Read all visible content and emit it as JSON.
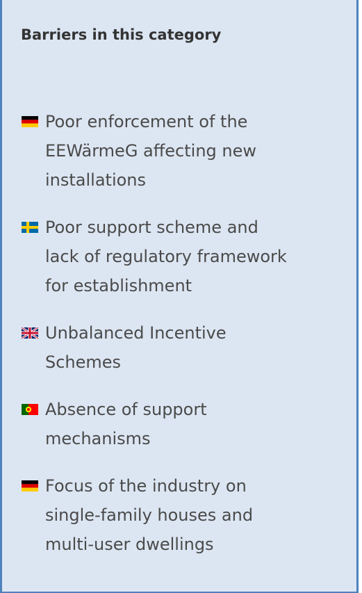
{
  "panel": {
    "title": "Barriers in this category",
    "items": [
      {
        "lines": [
          "Poor enforcement of the",
          "EEWärmeG affecting new",
          "installations"
        ]
      },
      {
        "lines": [
          "Poor support scheme and",
          "lack of regulatory framework",
          "for establishment"
        ]
      },
      {
        "lines": [
          "Unbalanced Incentive",
          "Schemes"
        ]
      },
      {
        "lines": [
          "Absence of support",
          "mechanisms"
        ]
      },
      {
        "lines": [
          "Focus of the industry on",
          "single-family houses and",
          "multi-user dwellings"
        ]
      }
    ]
  }
}
